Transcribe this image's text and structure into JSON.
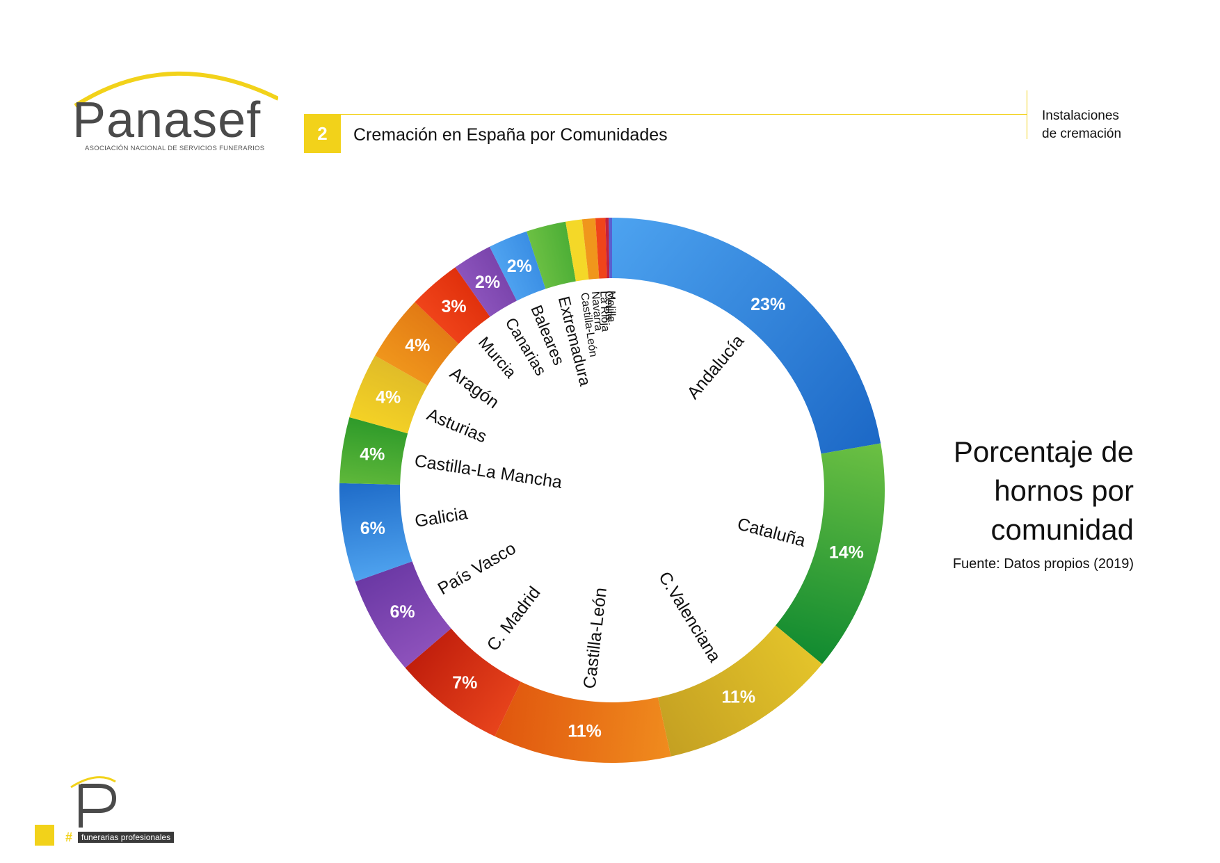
{
  "logo": {
    "name": "Panasef",
    "subtitle": "ASOCIACIÓN NACIONAL DE SERVICIOS FUNERARIOS"
  },
  "header": {
    "number": "2",
    "title": "Cremación en España por Comunidades",
    "section_line1": "Instalaciones",
    "section_line2": "de cremación"
  },
  "side": {
    "title_line1": "Porcentaje de",
    "title_line2": "hornos por",
    "title_line3": "comunidad",
    "source": "Fuente: Datos propios (2019)"
  },
  "footer": {
    "hash": "#",
    "tag": "funerarias profesionales"
  },
  "colors": {
    "accent": "#f2d21a",
    "logo_gray": "#4a4a4a"
  },
  "chart_data": {
    "type": "pie",
    "variant": "donut",
    "start_angle_deg": 0,
    "direction": "clockwise",
    "slices": [
      {
        "label": "Andalucía",
        "value": 22.8,
        "display": "23%",
        "color": "#4da3f0",
        "color2": "#1c68c6"
      },
      {
        "label": "Cataluña",
        "value": 14.1,
        "display": "14%",
        "color": "#6cc043",
        "color2": "#108a30"
      },
      {
        "label": "C.Valenciana",
        "value": 10.8,
        "display": "11%",
        "color": "#e4c42a",
        "color2": "#c4a022"
      },
      {
        "label": "Castilla-León",
        "value": 10.8,
        "display": "11%",
        "color": "#f08c1e",
        "color2": "#e0560e"
      },
      {
        "label": "C. Madrid",
        "value": 6.8,
        "display": "7%",
        "color": "#e8441c",
        "color2": "#c01e0c"
      },
      {
        "label": "País Vasco",
        "value": 6.0,
        "display": "6%",
        "color": "#8e52bc",
        "color2": "#6a38a4"
      },
      {
        "label": "Galicia",
        "value": 6.0,
        "display": "6%",
        "color": "#4fa3ef",
        "color2": "#1e6bc8"
      },
      {
        "label": "Castilla-La Mancha",
        "value": 4.0,
        "display": "4%",
        "color": "#5fb83a",
        "color2": "#2e9a2a"
      },
      {
        "label": "Asturias",
        "value": 4.0,
        "display": "4%",
        "color": "#f4d225",
        "color2": "#e0bb28"
      },
      {
        "label": "Aragón",
        "value": 4.0,
        "display": "4%",
        "color": "#f0961c",
        "color2": "#e27a14"
      },
      {
        "label": "Murcia",
        "value": 3.2,
        "display": "3%",
        "color": "#f0441a",
        "color2": "#e0300c"
      },
      {
        "label": "Canarias",
        "value": 2.4,
        "display": "2%",
        "color": "#8c54bc",
        "color2": "#7a44ac"
      },
      {
        "label": "Baleares",
        "value": 2.4,
        "display": "2%",
        "color": "#4fa3f0",
        "color2": "#3a8ee4"
      },
      {
        "label": "Extremadura",
        "value": 2.4,
        "display": "",
        "color": "#6cc043",
        "color2": "#4cae36"
      },
      {
        "label": "Castilla-León",
        "value": 1.0,
        "display": "",
        "color": "#f4d828",
        "color2": "#f4d828"
      },
      {
        "label": "Navarra",
        "value": 0.8,
        "display": "",
        "color": "#f0961c",
        "color2": "#f0961c"
      },
      {
        "label": "La Rioja",
        "value": 0.6,
        "display": "",
        "color": "#f0441a",
        "color2": "#f0441a"
      },
      {
        "label": "Ceuta",
        "value": 0.2,
        "display": "",
        "color": "#c02040",
        "color2": "#c02040"
      },
      {
        "label": "Melilla",
        "value": 0.2,
        "display": "",
        "color": "#5a60d0",
        "color2": "#5a60d0"
      }
    ]
  }
}
